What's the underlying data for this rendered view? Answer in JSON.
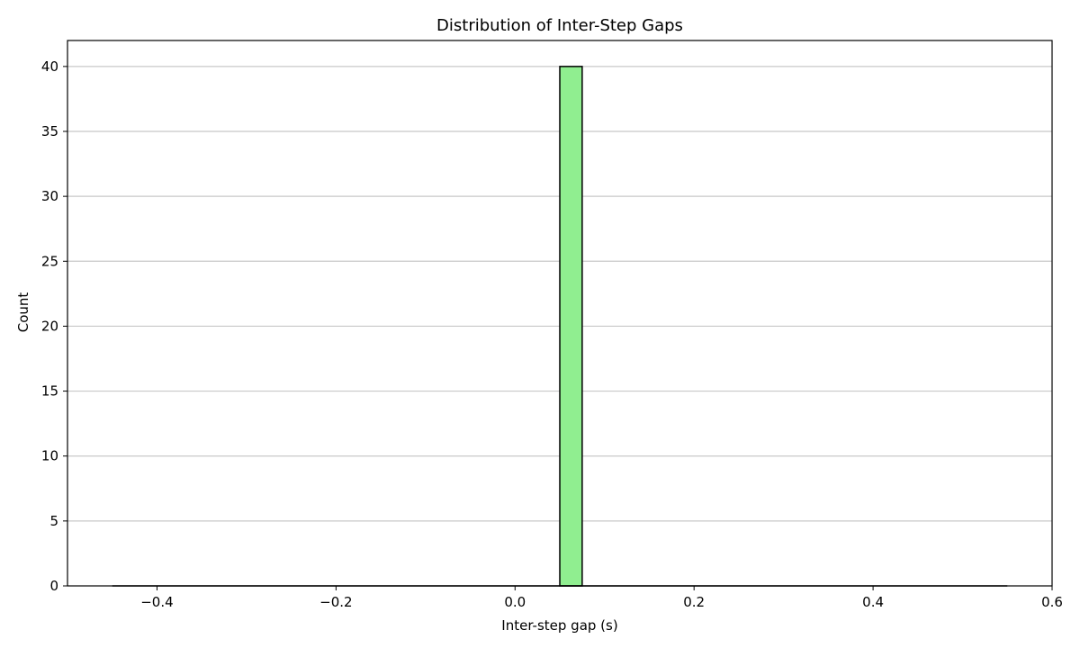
{
  "chart_data": {
    "type": "bar",
    "title": "Distribution of Inter-Step Gaps",
    "xlabel": "Inter-step gap (s)",
    "ylabel": "Count",
    "xlim": [
      -0.5,
      0.6
    ],
    "ylim": [
      0,
      42
    ],
    "xticks": [
      -0.4,
      -0.2,
      0.0,
      0.2,
      0.4,
      0.6
    ],
    "xtick_labels": [
      "−0.4",
      "−0.2",
      "0.0",
      "0.2",
      "0.4",
      "0.6"
    ],
    "yticks": [
      0,
      5,
      10,
      15,
      20,
      25,
      30,
      35,
      40
    ],
    "bin_range": [
      -0.45,
      0.55
    ],
    "bin_count": 40,
    "bins": [
      {
        "x0": 0.05,
        "x1": 0.075,
        "count": 40
      }
    ],
    "grid": "y",
    "bar_color": "#90ee90",
    "edge_color": "#000000",
    "grid_color": "#c8c8c8"
  }
}
